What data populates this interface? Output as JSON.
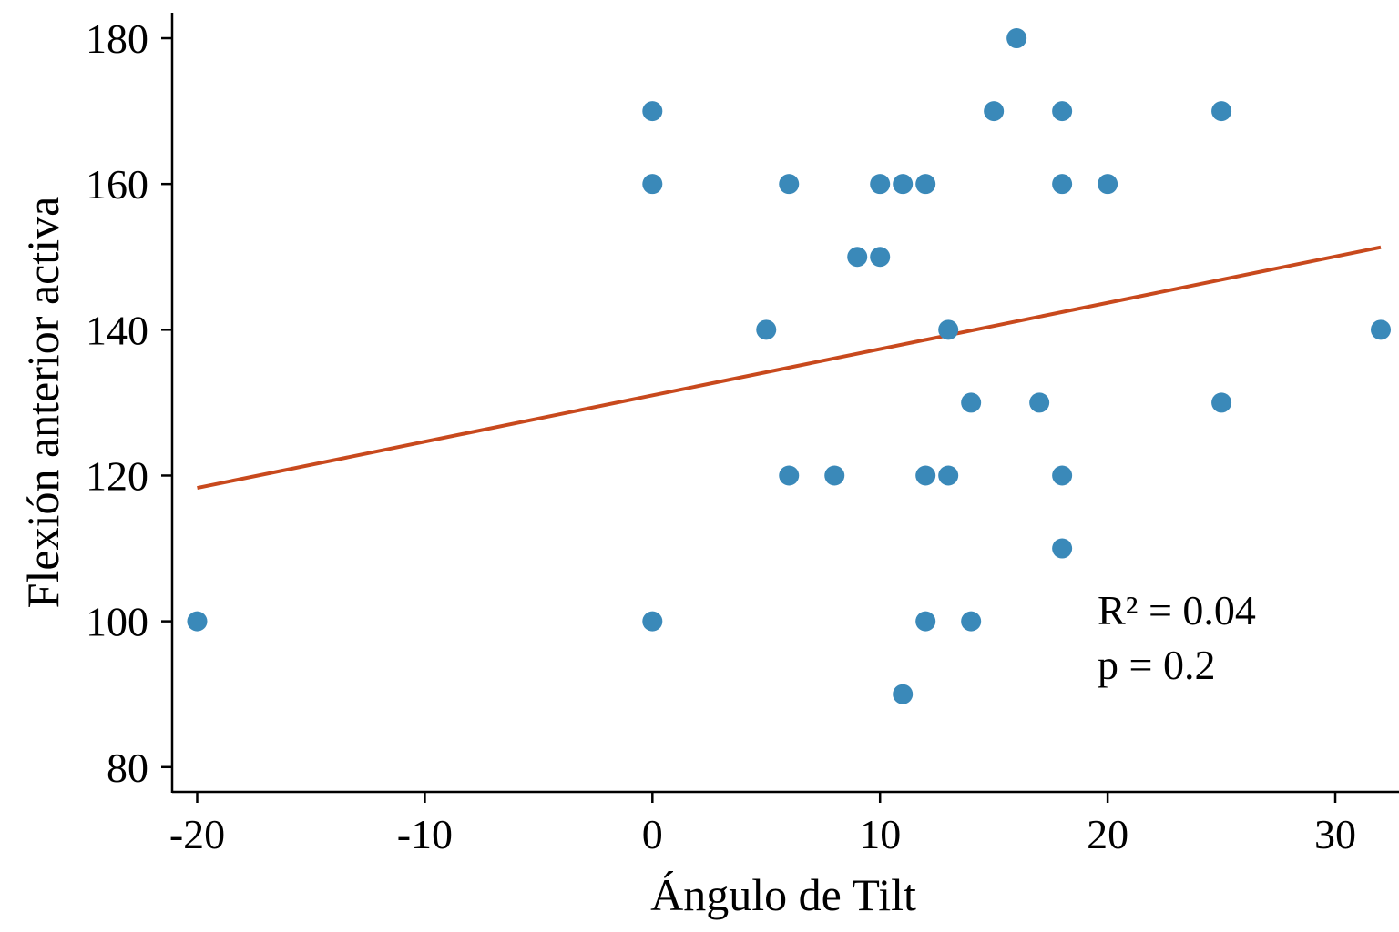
{
  "chart_data": {
    "type": "scatter",
    "title": "",
    "xlabel": "Ángulo de Tilt",
    "ylabel": "Flexión anterior activa",
    "xlim": [
      -21.1,
      32.8
    ],
    "ylim": [
      76.6,
      183.5
    ],
    "xticks": [
      -20,
      -10,
      0,
      10,
      20,
      30
    ],
    "yticks": [
      80,
      100,
      120,
      140,
      160,
      180
    ],
    "grid": false,
    "points": [
      [
        -20,
        100
      ],
      [
        0,
        170
      ],
      [
        0,
        160
      ],
      [
        0,
        100
      ],
      [
        5,
        140
      ],
      [
        6,
        160
      ],
      [
        6,
        120
      ],
      [
        8,
        120
      ],
      [
        9,
        150
      ],
      [
        10,
        160
      ],
      [
        10,
        150
      ],
      [
        11,
        160
      ],
      [
        11,
        90
      ],
      [
        12,
        160
      ],
      [
        12,
        120
      ],
      [
        12,
        100
      ],
      [
        13,
        140
      ],
      [
        13,
        120
      ],
      [
        14,
        130
      ],
      [
        14,
        100
      ],
      [
        15,
        170
      ],
      [
        16,
        180
      ],
      [
        17,
        130
      ],
      [
        18,
        170
      ],
      [
        18,
        160
      ],
      [
        18,
        120
      ],
      [
        18,
        110
      ],
      [
        20,
        160
      ],
      [
        25,
        170
      ],
      [
        25,
        130
      ],
      [
        32,
        140
      ]
    ],
    "regression": {
      "slope": 0.635,
      "intercept": 131.0,
      "x_range": [
        -20,
        32
      ]
    },
    "annotations": {
      "r2_label": "R² = 0.04",
      "p_label": "p = 0.2"
    },
    "colors": {
      "points": "#3a89b9",
      "line": "#c8491d",
      "axes": "#000000"
    }
  }
}
